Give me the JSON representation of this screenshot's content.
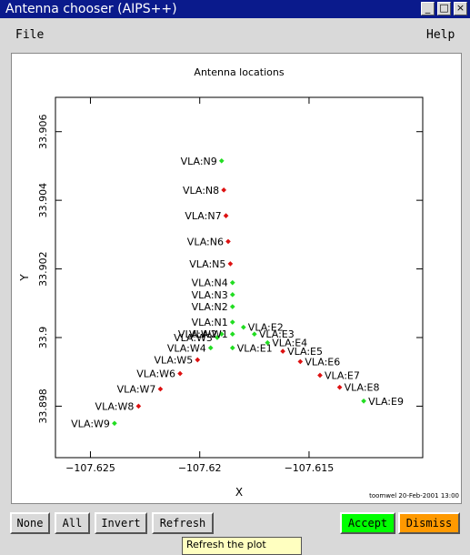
{
  "window": {
    "title": "Antenna chooser (AIPS++)"
  },
  "window_buttons": {
    "minimize": "_",
    "maximize": "□",
    "close": "×"
  },
  "menu": {
    "file": "File",
    "help": "Help"
  },
  "buttons": {
    "none": "None",
    "all": "All",
    "invert": "Invert",
    "refresh": "Refresh",
    "accept": "Accept",
    "dismiss": "Dismiss"
  },
  "colors": {
    "selected": "#22dd22",
    "deselected": "#dd1111",
    "accept_bg": "#00ff00",
    "dismiss_bg": "#ff9900",
    "titlebar": "#0a1a8c"
  },
  "tooltip": "Refresh the plot",
  "chart_data": {
    "type": "scatter",
    "title": "Antenna locations",
    "xlabel": "X",
    "ylabel": "Y",
    "xlim": [
      -107.6266,
      -107.6098
    ],
    "ylim": [
      33.8965,
      33.907
    ],
    "xticks": [
      -107.625,
      -107.62,
      -107.615
    ],
    "xtick_labels": [
      "−107.625",
      "−107.62",
      "−107.615"
    ],
    "yticks": [
      33.898,
      33.9,
      33.902,
      33.904,
      33.906
    ],
    "ytick_labels": [
      "33.898",
      "33.9",
      "33.902",
      "33.904",
      "33.906"
    ],
    "footer": "toomwel 20-Feb-2001 13:00",
    "points": [
      {
        "name": "VLA:N9",
        "x": -107.619,
        "y": 33.90515,
        "selected": true
      },
      {
        "name": "VLA:N8",
        "x": -107.6189,
        "y": 33.9043,
        "selected": false
      },
      {
        "name": "VLA:N7",
        "x": -107.6188,
        "y": 33.90355,
        "selected": false
      },
      {
        "name": "VLA:N6",
        "x": -107.6187,
        "y": 33.9028,
        "selected": false
      },
      {
        "name": "VLA:N5",
        "x": -107.6186,
        "y": 33.90215,
        "selected": false
      },
      {
        "name": "VLA:N4",
        "x": -107.6185,
        "y": 33.9016,
        "selected": true
      },
      {
        "name": "VLA:N3",
        "x": -107.6185,
        "y": 33.90125,
        "selected": true
      },
      {
        "name": "VLA:N2",
        "x": -107.6185,
        "y": 33.9009,
        "selected": true
      },
      {
        "name": "VLA:N1",
        "x": -107.6185,
        "y": 33.90045,
        "selected": true
      },
      {
        "name": "VLA:W2",
        "x": -107.619,
        "y": 33.9001,
        "selected": true
      },
      {
        "name": "VLA:W3",
        "x": -107.6192,
        "y": 33.9,
        "selected": true
      },
      {
        "name": "VLA:W1",
        "x": -107.6185,
        "y": 33.9001,
        "selected": true
      },
      {
        "name": "VLA:W4",
        "x": -107.6195,
        "y": 33.8997,
        "selected": true
      },
      {
        "name": "VLA:E1",
        "x": -107.6185,
        "y": 33.8997,
        "selected": true
      },
      {
        "name": "VLA:E2",
        "x": -107.618,
        "y": 33.9003,
        "selected": true
      },
      {
        "name": "VLA:E3",
        "x": -107.6175,
        "y": 33.9001,
        "selected": true
      },
      {
        "name": "VLA:E4",
        "x": -107.6169,
        "y": 33.89985,
        "selected": true
      },
      {
        "name": "VLA:E5",
        "x": -107.6162,
        "y": 33.8996,
        "selected": false
      },
      {
        "name": "VLA:E6",
        "x": -107.6154,
        "y": 33.8993,
        "selected": false
      },
      {
        "name": "VLA:E7",
        "x": -107.6145,
        "y": 33.8989,
        "selected": false
      },
      {
        "name": "VLA:E8",
        "x": -107.6136,
        "y": 33.89855,
        "selected": false
      },
      {
        "name": "VLA:E9",
        "x": -107.6125,
        "y": 33.89815,
        "selected": true
      },
      {
        "name": "VLA:W5",
        "x": -107.6201,
        "y": 33.89935,
        "selected": false
      },
      {
        "name": "VLA:W6",
        "x": -107.6209,
        "y": 33.89895,
        "selected": false
      },
      {
        "name": "VLA:W7",
        "x": -107.6218,
        "y": 33.8985,
        "selected": false
      },
      {
        "name": "VLA:W8",
        "x": -107.6228,
        "y": 33.898,
        "selected": false
      },
      {
        "name": "VLA:W9",
        "x": -107.6239,
        "y": 33.8975,
        "selected": true
      }
    ]
  }
}
